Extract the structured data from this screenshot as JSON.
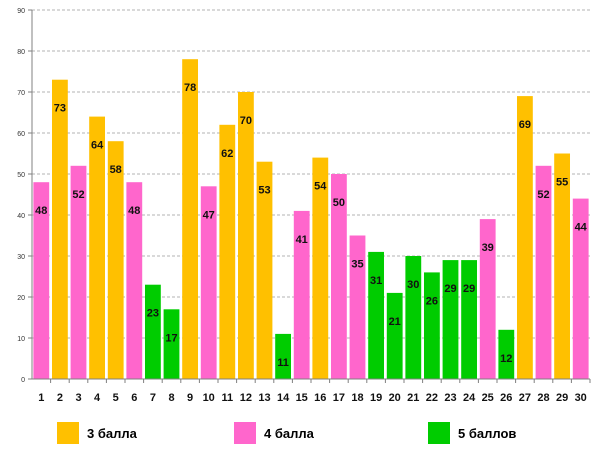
{
  "chart_data": {
    "type": "bar",
    "categories": [
      "1",
      "2",
      "3",
      "4",
      "5",
      "6",
      "7",
      "8",
      "9",
      "10",
      "11",
      "12",
      "13",
      "14",
      "15",
      "16",
      "17",
      "18",
      "19",
      "20",
      "21",
      "22",
      "23",
      "24",
      "25",
      "26",
      "27",
      "28",
      "29",
      "30"
    ],
    "values": [
      48,
      73,
      52,
      64,
      58,
      48,
      23,
      17,
      78,
      47,
      62,
      70,
      53,
      11,
      41,
      54,
      50,
      35,
      31,
      21,
      30,
      26,
      29,
      29,
      39,
      12,
      69,
      52,
      55,
      44
    ],
    "groups": [
      "3 балла",
      "4 балла",
      "5 баллов"
    ],
    "bar_groups": [
      1,
      0,
      1,
      0,
      0,
      1,
      2,
      2,
      0,
      1,
      0,
      0,
      0,
      2,
      1,
      0,
      1,
      1,
      2,
      2,
      2,
      2,
      2,
      2,
      1,
      2,
      0,
      1,
      0,
      1
    ],
    "ylim": [
      0,
      90
    ],
    "yticks": [
      0,
      10,
      20,
      30,
      40,
      50,
      60,
      70,
      80,
      90
    ],
    "grid": "horizontal dashed",
    "legend": [
      {
        "label": "3 балла",
        "color": "#FFC000"
      },
      {
        "label": "4 балла",
        "color": "#FF66CC"
      },
      {
        "label": "5 баллов",
        "color": "#00CC00"
      }
    ],
    "legend_position": "bottom"
  },
  "colors": {
    "group_0": "#FFC000",
    "group_1": "#FF66CC",
    "group_2": "#00CC00"
  }
}
